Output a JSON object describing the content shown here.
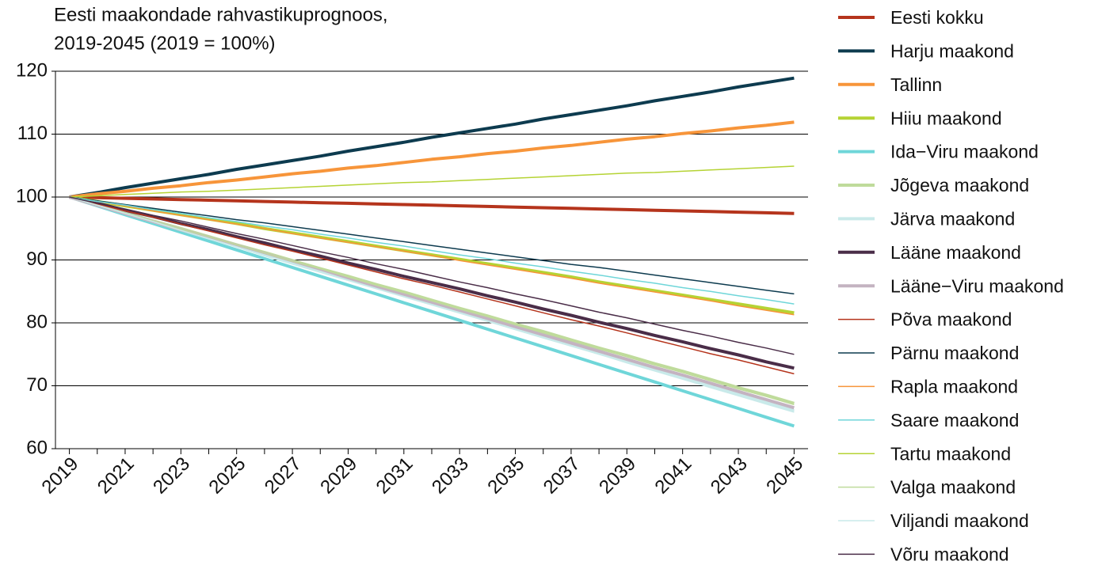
{
  "chart_data": {
    "type": "line",
    "title_lines": [
      "Eesti maakondade rahvastikuprognoos,",
      "2019-2045 (2019 = 100%)"
    ],
    "x": [
      2019,
      2020,
      2021,
      2022,
      2023,
      2024,
      2025,
      2026,
      2027,
      2028,
      2029,
      2030,
      2031,
      2032,
      2033,
      2034,
      2035,
      2036,
      2037,
      2038,
      2039,
      2040,
      2041,
      2042,
      2043,
      2044,
      2045
    ],
    "xlim": [
      2018.5,
      2045.5
    ],
    "xticks": [
      2019,
      2021,
      2023,
      2025,
      2027,
      2029,
      2031,
      2033,
      2035,
      2037,
      2039,
      2041,
      2043,
      2045
    ],
    "ylim": [
      60,
      120
    ],
    "yticks": [
      60,
      70,
      80,
      90,
      100,
      110,
      120
    ],
    "grid": true,
    "legend": "right",
    "series": [
      {
        "name": "Eesti kokku",
        "color": "#b5341c",
        "width": 4,
        "values": [
          100,
          99.9,
          99.8,
          99.7,
          99.6,
          99.5,
          99.4,
          99.3,
          99.2,
          99.1,
          99.0,
          98.9,
          98.8,
          98.7,
          98.6,
          98.5,
          98.4,
          98.3,
          98.2,
          98.1,
          98.0,
          97.9,
          97.8,
          97.7,
          97.6,
          97.5,
          97.4
        ]
      },
      {
        "name": "Harju maakond",
        "color": "#0d3b4f",
        "width": 4,
        "values": [
          100,
          100.7,
          101.5,
          102.2,
          102.9,
          103.6,
          104.4,
          105.1,
          105.8,
          106.5,
          107.3,
          108.0,
          108.7,
          109.5,
          110.2,
          110.9,
          111.6,
          112.4,
          113.1,
          113.8,
          114.5,
          115.3,
          116.0,
          116.7,
          117.5,
          118.2,
          118.9
        ]
      },
      {
        "name": "Tallinn",
        "color": "#f7953a",
        "width": 4,
        "values": [
          100,
          100.5,
          100.9,
          101.4,
          101.8,
          102.3,
          102.7,
          103.2,
          103.7,
          104.1,
          104.6,
          105.0,
          105.5,
          106.0,
          106.4,
          106.9,
          107.3,
          107.8,
          108.2,
          108.7,
          109.2,
          109.6,
          110.1,
          110.5,
          111.0,
          111.4,
          111.9
        ]
      },
      {
        "name": "Hiiu maakond",
        "color": "#b5d334",
        "width": 4,
        "values": [
          100,
          99.3,
          98.6,
          97.9,
          97.2,
          96.5,
          95.8,
          95.0,
          94.3,
          93.6,
          92.9,
          92.2,
          91.5,
          90.8,
          90.1,
          89.4,
          88.7,
          88.0,
          87.3,
          86.5,
          85.8,
          85.1,
          84.4,
          83.7,
          83.0,
          82.3,
          81.6
        ]
      },
      {
        "name": "Ida−Viru maakond",
        "color": "#6fd6d9",
        "width": 4,
        "values": [
          100,
          98.6,
          97.2,
          95.8,
          94.4,
          93.0,
          91.6,
          90.2,
          88.8,
          87.4,
          86.0,
          84.6,
          83.2,
          81.8,
          80.4,
          79.0,
          77.6,
          76.2,
          74.8,
          73.4,
          72.0,
          70.6,
          69.2,
          67.8,
          66.4,
          65.0,
          63.6
        ]
      },
      {
        "name": "Jõgeva maakond",
        "color": "#bfdb9b",
        "width": 4,
        "values": [
          100,
          98.7,
          97.5,
          96.2,
          95.0,
          93.7,
          92.4,
          91.2,
          89.9,
          88.6,
          87.4,
          86.1,
          84.9,
          83.6,
          82.3,
          81.1,
          79.8,
          78.6,
          77.3,
          76.0,
          74.8,
          73.5,
          72.3,
          71.0,
          69.7,
          68.5,
          67.2
        ]
      },
      {
        "name": "Järva maakond",
        "color": "#c9eaea",
        "width": 4,
        "values": [
          100,
          98.7,
          97.4,
          96.1,
          94.8,
          93.5,
          92.2,
          90.8,
          89.5,
          88.2,
          86.9,
          85.6,
          84.3,
          83.0,
          81.7,
          80.4,
          79.1,
          77.8,
          76.5,
          75.2,
          73.8,
          72.5,
          71.2,
          69.9,
          68.6,
          67.3,
          66.0
        ]
      },
      {
        "name": "Lääne maakond",
        "color": "#4a2d48",
        "width": 4,
        "values": [
          100,
          99.0,
          97.9,
          96.9,
          95.8,
          94.8,
          93.7,
          92.7,
          91.6,
          90.6,
          89.5,
          88.5,
          87.4,
          86.4,
          85.4,
          84.3,
          83.3,
          82.2,
          81.2,
          80.1,
          79.1,
          78.0,
          77.0,
          75.9,
          74.9,
          73.8,
          72.8
        ]
      },
      {
        "name": "Lääne−Viru maakond",
        "color": "#c4b3c1",
        "width": 4,
        "values": [
          100,
          98.7,
          97.4,
          96.1,
          94.8,
          93.6,
          92.3,
          91.0,
          89.7,
          88.4,
          87.1,
          85.8,
          84.5,
          83.3,
          82.0,
          80.7,
          79.4,
          78.1,
          76.8,
          75.5,
          74.2,
          72.9,
          71.7,
          70.4,
          69.1,
          67.8,
          66.5
        ]
      },
      {
        "name": "Põva maakond",
        "color": "#b5341c",
        "width": 1.5,
        "values": [
          100,
          98.9,
          97.8,
          96.8,
          95.7,
          94.6,
          93.5,
          92.4,
          91.4,
          90.3,
          89.2,
          88.1,
          87.0,
          86.0,
          84.9,
          83.8,
          82.7,
          81.6,
          80.5,
          79.5,
          78.4,
          77.3,
          76.2,
          75.1,
          74.1,
          73.0,
          71.9
        ]
      },
      {
        "name": "Pärnu maakond",
        "color": "#0d3b4f",
        "width": 1.5,
        "values": [
          100,
          99.4,
          98.8,
          98.2,
          97.6,
          97.0,
          96.4,
          95.9,
          95.3,
          94.7,
          94.1,
          93.5,
          92.9,
          92.3,
          91.7,
          91.1,
          90.5,
          89.9,
          89.3,
          88.8,
          88.2,
          87.6,
          87.0,
          86.4,
          85.8,
          85.2,
          84.6
        ]
      },
      {
        "name": "Rapla maakond",
        "color": "#f7953a",
        "width": 1.5,
        "values": [
          100,
          99.3,
          98.6,
          97.8,
          97.1,
          96.4,
          95.7,
          95.0,
          94.2,
          93.5,
          92.8,
          92.1,
          91.4,
          90.7,
          89.9,
          89.2,
          88.5,
          87.8,
          87.1,
          86.3,
          85.6,
          84.9,
          84.2,
          83.5,
          82.7,
          82.0,
          81.3
        ]
      },
      {
        "name": "Saare maakond",
        "color": "#6fd6d9",
        "width": 1.5,
        "values": [
          100,
          99.3,
          98.7,
          98.0,
          97.4,
          96.7,
          96.1,
          95.4,
          94.8,
          94.1,
          93.5,
          92.8,
          92.2,
          91.5,
          90.8,
          90.2,
          89.5,
          88.9,
          88.2,
          87.6,
          86.9,
          86.3,
          85.6,
          85.0,
          84.3,
          83.7,
          83.0
        ]
      },
      {
        "name": "Tartu maakond",
        "color": "#b5d334",
        "width": 1.5,
        "values": [
          100,
          100.2,
          100.4,
          100.6,
          100.8,
          100.9,
          101.1,
          101.3,
          101.5,
          101.7,
          101.9,
          102.1,
          102.3,
          102.4,
          102.6,
          102.8,
          103.0,
          103.2,
          103.4,
          103.6,
          103.8,
          103.9,
          104.1,
          104.3,
          104.5,
          104.7,
          104.9
        ]
      },
      {
        "name": "Valga maakond",
        "color": "#bfdb9b",
        "width": 1.5,
        "values": [
          100,
          98.7,
          97.5,
          96.2,
          94.9,
          93.7,
          92.4,
          91.1,
          89.8,
          88.6,
          87.3,
          86.0,
          84.8,
          83.5,
          82.2,
          81.0,
          79.7,
          78.4,
          77.2,
          75.9,
          74.6,
          73.3,
          72.1,
          70.8,
          69.5,
          68.3,
          67.0
        ]
      },
      {
        "name": "Viljandi maakond",
        "color": "#c9eaea",
        "width": 1.5,
        "values": [
          100,
          98.7,
          97.4,
          96.1,
          94.7,
          93.4,
          92.1,
          90.8,
          89.5,
          88.2,
          86.8,
          85.5,
          84.2,
          82.9,
          81.6,
          80.3,
          78.9,
          77.6,
          76.3,
          75.0,
          73.7,
          72.4,
          71.1,
          69.7,
          68.4,
          67.1,
          65.8
        ]
      },
      {
        "name": "Võru maakond",
        "color": "#4a2d48",
        "width": 1.5,
        "values": [
          100,
          99.0,
          98.1,
          97.1,
          96.2,
          95.2,
          94.2,
          93.3,
          92.3,
          91.3,
          90.4,
          89.4,
          88.5,
          87.5,
          86.5,
          85.6,
          84.6,
          83.7,
          82.7,
          81.7,
          80.8,
          79.8,
          78.8,
          77.9,
          76.9,
          76.0,
          75.0
        ]
      }
    ]
  }
}
